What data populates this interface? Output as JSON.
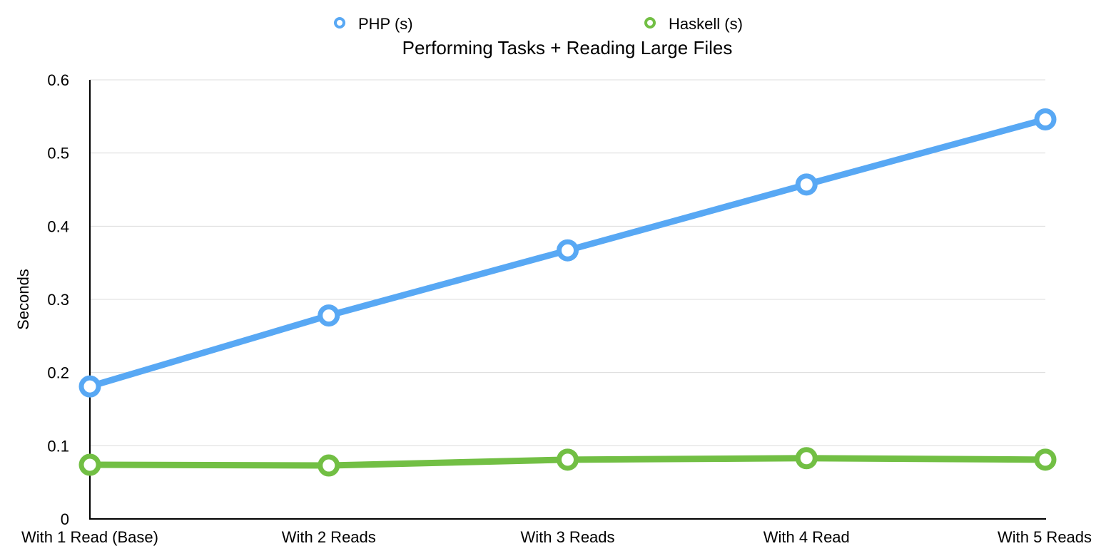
{
  "chart_data": {
    "type": "line",
    "title": "Performing Tasks + Reading Large Files",
    "xlabel": "",
    "ylabel": "Seconds",
    "categories": [
      "With 1 Read (Base)",
      "With 2 Reads",
      "With 3 Reads",
      "With 4 Read",
      "With 5 Reads"
    ],
    "ylim": [
      0,
      0.6
    ],
    "yticks": [
      "0",
      "0.1",
      "0.2",
      "0.3",
      "0.4",
      "0.5",
      "0.6"
    ],
    "grid": true,
    "legend_position": "top-center",
    "series": [
      {
        "name": "PHP (s)",
        "color": "#58a8f4",
        "values": [
          0.181,
          0.278,
          0.367,
          0.457,
          0.546
        ]
      },
      {
        "name": "Haskell (s)",
        "color": "#72bf44",
        "values": [
          0.074,
          0.073,
          0.081,
          0.083,
          0.081
        ]
      }
    ]
  }
}
